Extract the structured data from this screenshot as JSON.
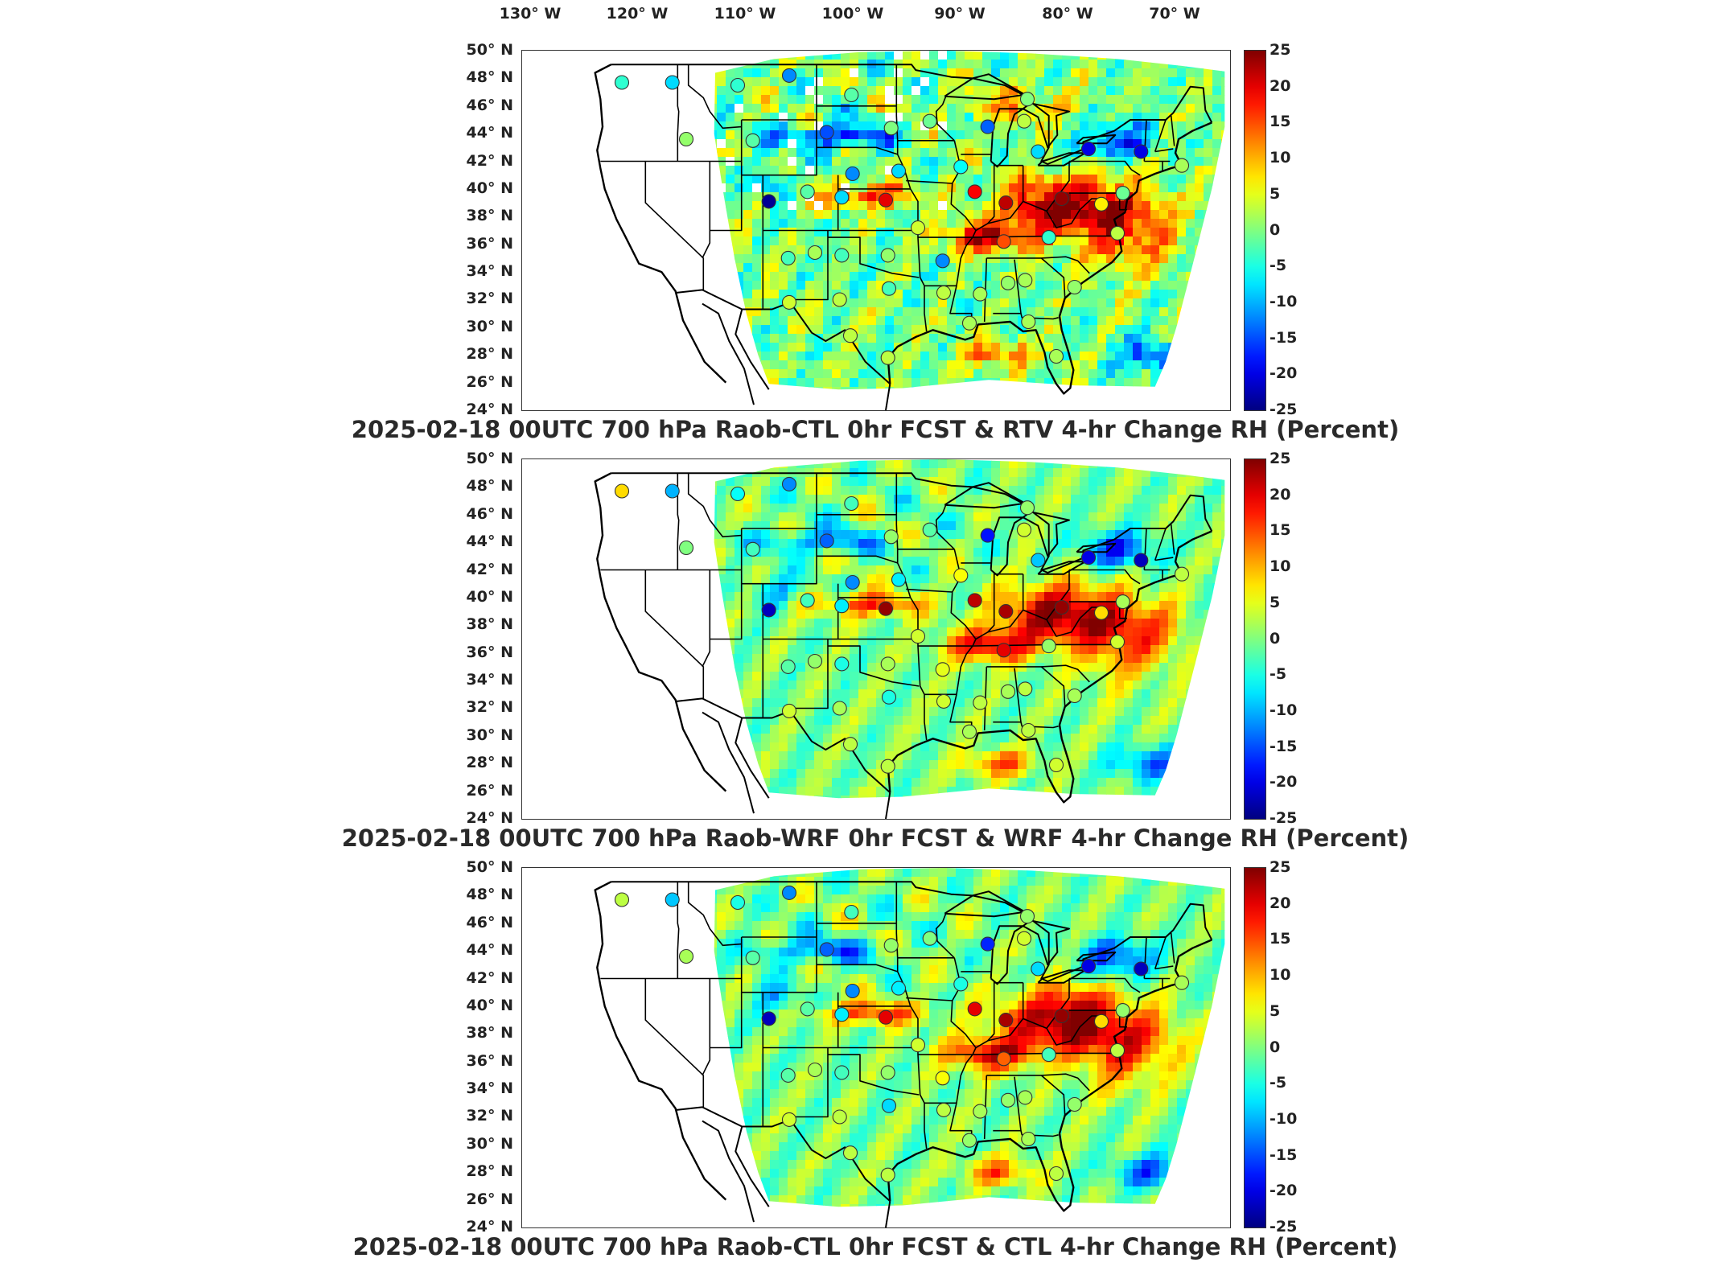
{
  "longitude_labels": [
    "130° W",
    "120° W",
    "110° W",
    "100° W",
    "90° W",
    "80° W",
    "70° W"
  ],
  "latitude_labels": [
    "50° N",
    "48° N",
    "46° N",
    "44° N",
    "42° N",
    "40° N",
    "38° N",
    "36° N",
    "34° N",
    "32° N",
    "30° N",
    "28° N",
    "26° N",
    "24° N"
  ],
  "colorbar": {
    "colormap": "jet",
    "min": -25,
    "max": 25,
    "ticks": [
      "25",
      "20",
      "15",
      "10",
      "5",
      "0",
      "-5",
      "-10",
      "-15",
      "-20",
      "-25"
    ],
    "colors": [
      "#00007f",
      "#0000ff",
      "#007fff",
      "#00ffff",
      "#7fff7f",
      "#ffff00",
      "#ff7f00",
      "#ff0000",
      "#7f0000"
    ]
  },
  "panels": [
    {
      "title": "2025-02-18 00UTC 700 hPa Raob-CTL 0hr FCST & RTV 4-hr Change RH (Percent)",
      "field": "RTV 4-hr Change RH"
    },
    {
      "title": "2025-02-18 00UTC 700 hPa Raob-WRF 0hr FCST & WRF 4-hr Change RH (Percent)",
      "field": "WRF 4-hr Change RH"
    },
    {
      "title": "2025-02-18 00UTC 700 hPa Raob-CTL 0hr FCST & CTL 4-hr Change RH (Percent)",
      "field": "CTL 4-hr Change RH"
    }
  ],
  "raob_stations": [
    {
      "lon": -122.2,
      "lat": 47.7,
      "v1": -4,
      "v2": 8,
      "v3": 3
    },
    {
      "lon": -117.5,
      "lat": 47.7,
      "v1": -8,
      "v2": -10,
      "v3": -9
    },
    {
      "lon": -111.4,
      "lat": 47.5,
      "v1": -4,
      "v2": -6,
      "v3": -5
    },
    {
      "lon": -106.6,
      "lat": 48.2,
      "v1": -12,
      "v2": -12,
      "v3": -12
    },
    {
      "lon": -100.8,
      "lat": 46.8,
      "v1": -2,
      "v2": -3,
      "v3": -3
    },
    {
      "lon": -93.5,
      "lat": 44.9,
      "v1": -1,
      "v2": -2,
      "v3": 0
    },
    {
      "lon": -97.1,
      "lat": 44.4,
      "v1": 0,
      "v2": 1,
      "v3": 1
    },
    {
      "lon": -88.1,
      "lat": 44.5,
      "v1": -14,
      "v2": -18,
      "v3": -17
    },
    {
      "lon": -84.7,
      "lat": 44.9,
      "v1": 3,
      "v2": 4,
      "v3": 4
    },
    {
      "lon": -84.4,
      "lat": 46.5,
      "v1": 0,
      "v2": 1,
      "v3": 1
    },
    {
      "lon": -110.0,
      "lat": 43.5,
      "v1": -2,
      "v2": -3,
      "v3": -2
    },
    {
      "lon": -116.2,
      "lat": 43.6,
      "v1": 1,
      "v2": 0,
      "v3": 2
    },
    {
      "lon": -103.1,
      "lat": 44.1,
      "v1": -15,
      "v2": -14,
      "v3": -14
    },
    {
      "lon": -100.7,
      "lat": 41.1,
      "v1": -12,
      "v2": -12,
      "v3": -12
    },
    {
      "lon": -96.4,
      "lat": 41.3,
      "v1": -8,
      "v2": -7,
      "v3": -7
    },
    {
      "lon": -90.6,
      "lat": 41.6,
      "v1": -6,
      "v2": 6,
      "v3": -5
    },
    {
      "lon": -83.4,
      "lat": 42.7,
      "v1": -8,
      "v2": -9,
      "v3": -8
    },
    {
      "lon": -78.7,
      "lat": 42.9,
      "v1": -20,
      "v2": -20,
      "v3": -20
    },
    {
      "lon": -73.8,
      "lat": 42.7,
      "v1": -20,
      "v2": -22,
      "v3": -22
    },
    {
      "lon": -70.0,
      "lat": 41.7,
      "v1": 2,
      "v2": 3,
      "v3": 2
    },
    {
      "lon": -108.5,
      "lat": 39.1,
      "v1": -24,
      "v2": -22,
      "v3": -22
    },
    {
      "lon": -104.9,
      "lat": 39.8,
      "v1": -2,
      "v2": -3,
      "v3": -2
    },
    {
      "lon": -101.7,
      "lat": 39.4,
      "v1": -8,
      "v2": -7,
      "v3": -7
    },
    {
      "lon": -97.6,
      "lat": 39.2,
      "v1": 20,
      "v2": 24,
      "v3": 20
    },
    {
      "lon": -94.6,
      "lat": 37.2,
      "v1": 4,
      "v2": 4,
      "v3": 4
    },
    {
      "lon": -89.3,
      "lat": 39.8,
      "v1": 19,
      "v2": 22,
      "v3": 20
    },
    {
      "lon": -86.4,
      "lat": 39.0,
      "v1": 22,
      "v2": 23,
      "v3": 23
    },
    {
      "lon": -81.2,
      "lat": 39.3,
      "v1": 24,
      "v2": 24,
      "v3": 24
    },
    {
      "lon": -77.5,
      "lat": 38.9,
      "v1": 7,
      "v2": 8,
      "v3": 8
    },
    {
      "lon": -75.5,
      "lat": 39.7,
      "v1": -1,
      "v2": 2,
      "v3": 1
    },
    {
      "lon": -106.7,
      "lat": 35.0,
      "v1": -3,
      "v2": -2,
      "v3": -2
    },
    {
      "lon": -104.2,
      "lat": 35.4,
      "v1": 2,
      "v2": 1,
      "v3": 2
    },
    {
      "lon": -101.7,
      "lat": 35.2,
      "v1": -3,
      "v2": -5,
      "v3": -3
    },
    {
      "lon": -97.4,
      "lat": 35.2,
      "v1": 1,
      "v2": 2,
      "v3": 1
    },
    {
      "lon": -92.3,
      "lat": 34.8,
      "v1": -12,
      "v2": 5,
      "v3": 6
    },
    {
      "lon": -86.6,
      "lat": 36.2,
      "v1": 15,
      "v2": 20,
      "v3": 14
    },
    {
      "lon": -82.4,
      "lat": 36.5,
      "v1": -4,
      "v2": 1,
      "v3": -3
    },
    {
      "lon": -76.0,
      "lat": 36.8,
      "v1": 3,
      "v2": 4,
      "v3": 3
    },
    {
      "lon": -106.6,
      "lat": 31.8,
      "v1": 4,
      "v2": 4,
      "v3": 4
    },
    {
      "lon": -101.9,
      "lat": 32.0,
      "v1": 3,
      "v2": 2,
      "v3": 3
    },
    {
      "lon": -97.3,
      "lat": 32.8,
      "v1": -3,
      "v2": -5,
      "v3": -8
    },
    {
      "lon": -92.2,
      "lat": 32.5,
      "v1": 3,
      "v2": 4,
      "v3": 3
    },
    {
      "lon": -88.8,
      "lat": 32.4,
      "v1": 2,
      "v2": 3,
      "v3": 2
    },
    {
      "lon": -86.2,
      "lat": 33.2,
      "v1": 1,
      "v2": 2,
      "v3": 1
    },
    {
      "lon": -84.6,
      "lat": 33.4,
      "v1": 2,
      "v2": 3,
      "v3": 2
    },
    {
      "lon": -80.0,
      "lat": 32.9,
      "v1": 1,
      "v2": 2,
      "v3": 1
    },
    {
      "lon": -97.4,
      "lat": 27.8,
      "v1": 3,
      "v2": 3,
      "v3": 3
    },
    {
      "lon": -89.8,
      "lat": 30.3,
      "v1": 2,
      "v2": 2,
      "v3": 1
    },
    {
      "lon": -84.3,
      "lat": 30.4,
      "v1": 2,
      "v2": 3,
      "v3": 2
    },
    {
      "lon": -81.7,
      "lat": 27.9,
      "v1": 2,
      "v2": 4,
      "v3": 3
    },
    {
      "lon": -100.9,
      "lat": 29.4,
      "v1": 3,
      "v2": 3,
      "v3": 3
    }
  ]
}
